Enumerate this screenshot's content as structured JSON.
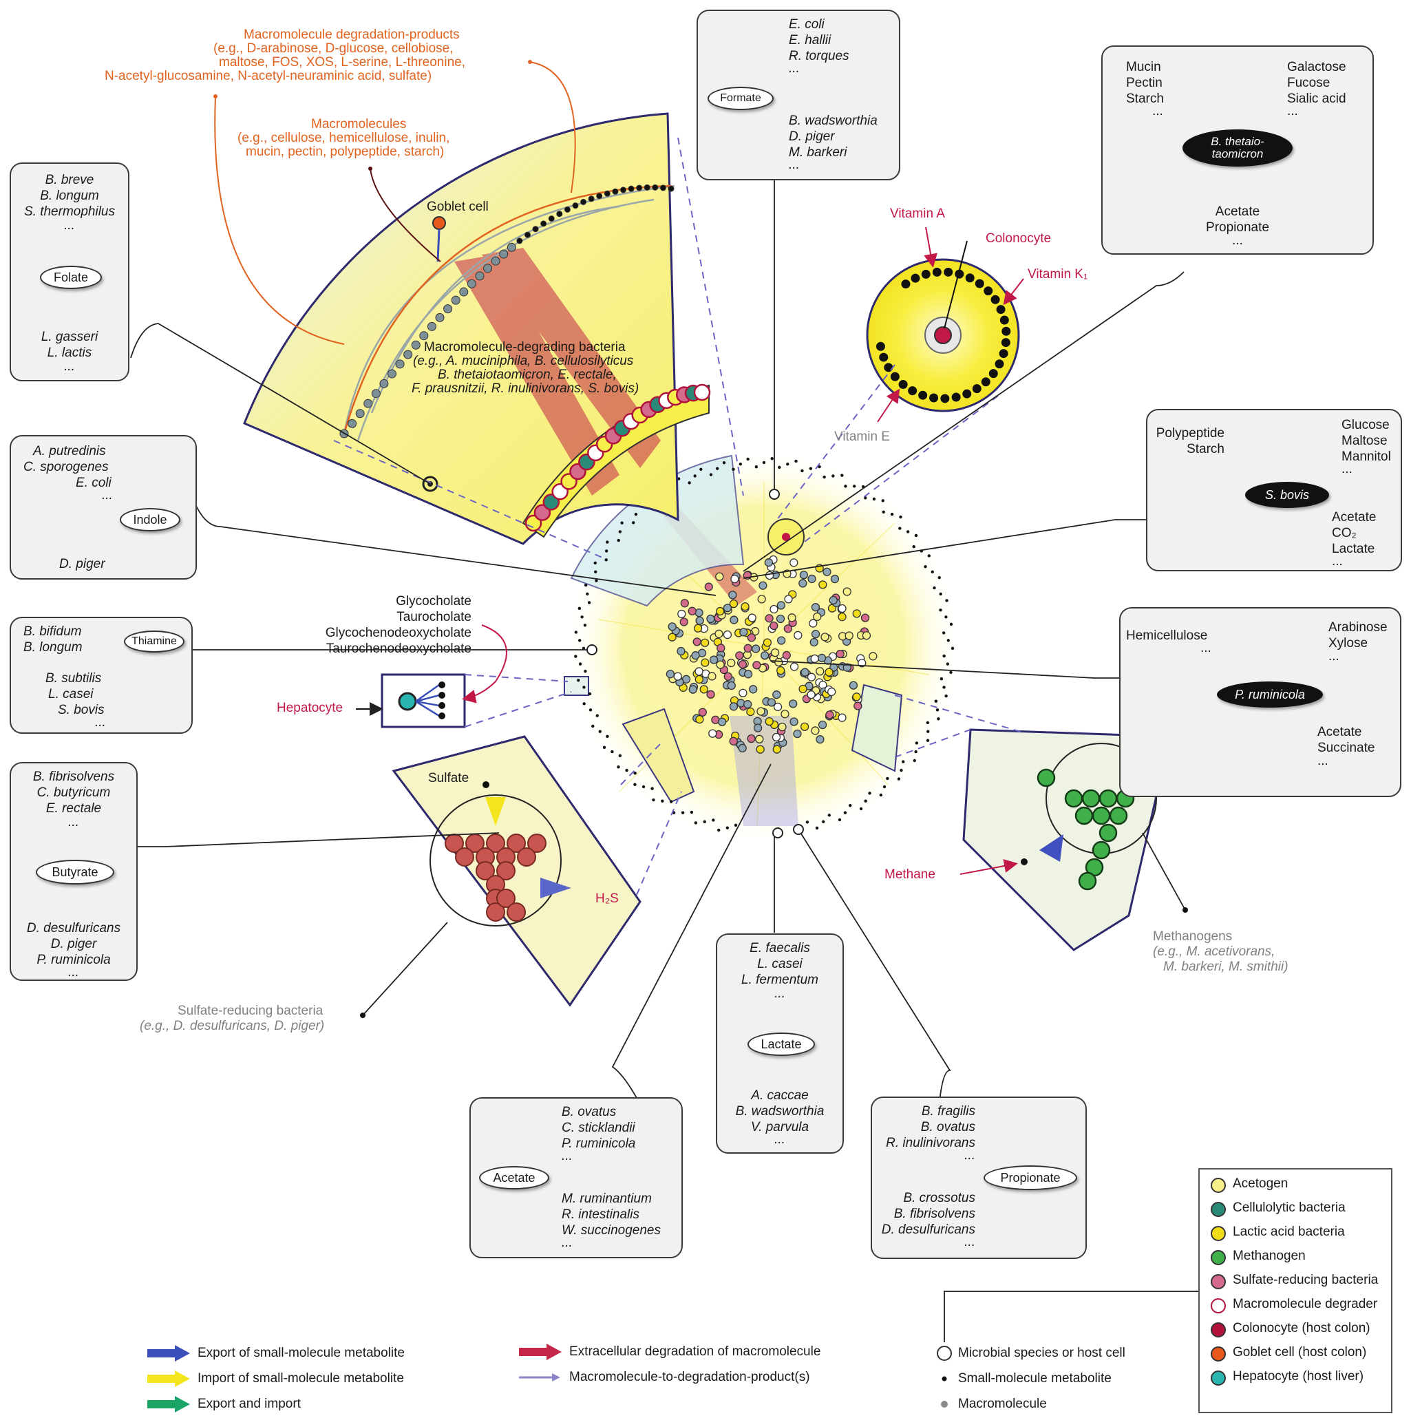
{
  "top_labels": {
    "degradation_products_title": "Macromolecule degradation-products",
    "degradation_products_line1": "(e.g., D-arabinose, D-glucose, cellobiose,",
    "degradation_products_line2": "maltose, FOS, XOS, L-serine, L-threonine,",
    "degradation_products_line3": "N-acetyl-glucosamine,    N-acetyl-neuraminic acid, sulfate)",
    "macromolecules_title": "Macromolecules",
    "macromolecules_line1": "(e.g., cellulose, hemicellulose, inulin,",
    "macromolecules_line2": "mucin, pectin, polypeptide, starch)",
    "goblet_cell": "Goblet cell",
    "degraders_title": "Macromolecule-degrading bacteria",
    "degraders_line1": "(e.g., A. muciniphila, B. cellulosilyticus",
    "degraders_line2": "B. thetaiotaomicron, E. rectale,",
    "degraders_line3": "F. prausnitzii, R. inulinivorans, S. bovis)",
    "vitamin_a": "Vitamin A",
    "colonocyte": "Colonocyte",
    "vitamin_k1": "Vitamin K₁",
    "vitamin_e": "Vitamin E",
    "bile_acids": [
      "Glycocholate",
      "Taurocholate",
      "Glycochenodeoxycholate",
      "Taurochenodeoxycholate"
    ],
    "hepatocyte": "Hepatocyte",
    "sulfate": "Sulfate",
    "h2s": "H₂S",
    "methane": "Methane",
    "methanogens_title": "Methanogens",
    "methanogens_line1": "(e.g., M. acetivorans,",
    "methanogens_line2": "M. barkeri, M. smithii)",
    "srb_title": "Sulfate-reducing bacteria",
    "srb_line1": "(e.g., D. desulfuricans, D. piger)"
  },
  "boxes": {
    "folate": {
      "producers": [
        "B. breve",
        "B. longum",
        "S. thermophilus",
        "..."
      ],
      "metabolite": "Folate",
      "consumers": [
        "L. gasseri",
        "L. lactis",
        "..."
      ]
    },
    "indole": {
      "producers": [
        "A. putredinis",
        "C. sporogenes",
        "E. coli",
        "..."
      ],
      "metabolite": "Indole",
      "consumers": [
        "D. piger"
      ]
    },
    "thiamine": {
      "producers": [
        "B. bifidum",
        "B. longum"
      ],
      "metabolite": "Thiamine",
      "consumers": [
        "B. subtilis",
        "L. casei",
        "S. bovis",
        "..."
      ]
    },
    "butyrate": {
      "producers": [
        "B. fibrisolvens",
        "C. butyricum",
        "E. rectale",
        "..."
      ],
      "metabolite": "Butyrate",
      "consumers": [
        "D. desulfuricans",
        "D. piger",
        "P. ruminicola",
        "..."
      ]
    },
    "formate": {
      "producers": [
        "E. coli",
        "E. hallii",
        "R. torques",
        "..."
      ],
      "metabolite": "Formate",
      "consumers": [
        "B. wadsworthia",
        "D. piger",
        "M. barkeri",
        "..."
      ]
    },
    "thetaiotaomicron": {
      "left_inputs": [
        "Mucin",
        "Pectin",
        "Starch",
        "..."
      ],
      "right_inputs": [
        "Galactose",
        "Fucose",
        "Sialic acid",
        "..."
      ],
      "organism": "B. thetaio-taomicron",
      "outputs": [
        "Acetate",
        "Propionate",
        "..."
      ]
    },
    "sbovis": {
      "left_inputs": [
        "Polypeptide",
        "Starch"
      ],
      "right_inputs": [
        "Glucose",
        "Maltose",
        "Mannitol",
        "..."
      ],
      "organism": "S. bovis",
      "outputs": [
        "Acetate",
        "CO₂",
        "Lactate",
        "..."
      ]
    },
    "pruminicola": {
      "left_inputs": [
        "Hemicellulose",
        "..."
      ],
      "right_inputs": [
        "Arabinose",
        "Xylose",
        "..."
      ],
      "organism": "P. ruminicola",
      "outputs": [
        "Acetate",
        "Succinate",
        "..."
      ]
    },
    "lactate": {
      "producers": [
        "E. faecalis",
        "L. casei",
        "L. fermentum",
        "..."
      ],
      "metabolite": "Lactate",
      "consumers": [
        "A. caccae",
        "B. wadsworthia",
        "V. parvula",
        "..."
      ]
    },
    "acetate": {
      "producers": [
        "B. ovatus",
        "C. sticklandii",
        "P. ruminicola",
        "..."
      ],
      "metabolite": "Acetate",
      "consumers": [
        "M. ruminantium",
        "R. intestinalis",
        "W. succinogenes",
        "..."
      ]
    },
    "propionate": {
      "producers": [
        "B. fragilis",
        "B. ovatus",
        "R. inulinivorans",
        "..."
      ],
      "metabolite": "Propionate",
      "consumers": [
        "B. crossotus",
        "B. fibrisolvens",
        "D. desulfuricans",
        "..."
      ]
    }
  },
  "node_legend": [
    {
      "label": "Acetogen",
      "color": "#f6ef8a"
    },
    {
      "label": "Cellulolytic bacteria",
      "color": "#2a8a78"
    },
    {
      "label": "Lactic acid bacteria",
      "color": "#f2dc1a"
    },
    {
      "label": "Methanogen",
      "color": "#3fb04a"
    },
    {
      "label": "Sulfate-reducing bacteria",
      "color": "#d46a8c"
    },
    {
      "label": "Macromolecule degrader",
      "color": "#ffffff"
    },
    {
      "label": "Colonocyte (host colon)",
      "color": "#b0123c"
    },
    {
      "label": "Goblet cell (host colon)",
      "color": "#e8581c"
    },
    {
      "label": "Hepatocyte (host liver)",
      "color": "#2bb5b0"
    }
  ],
  "edge_legend": [
    {
      "label": "Export of small-molecule metabolite",
      "color": "#3b4fb8"
    },
    {
      "label": "Import of small-molecule metabolite",
      "color": "#f3e61e"
    },
    {
      "label": "Export and import",
      "color": "#1aa566"
    },
    {
      "label": "Extracellular degradation of macromolecule",
      "color": "#c42848"
    },
    {
      "label": "Macromolecule-to-degradation-product(s)",
      "color": "#8a86c8"
    }
  ],
  "shape_legend": [
    {
      "label": "Microbial species or host cell"
    },
    {
      "label": "Small-molecule metabolite"
    },
    {
      "label": "Macromolecule"
    }
  ]
}
